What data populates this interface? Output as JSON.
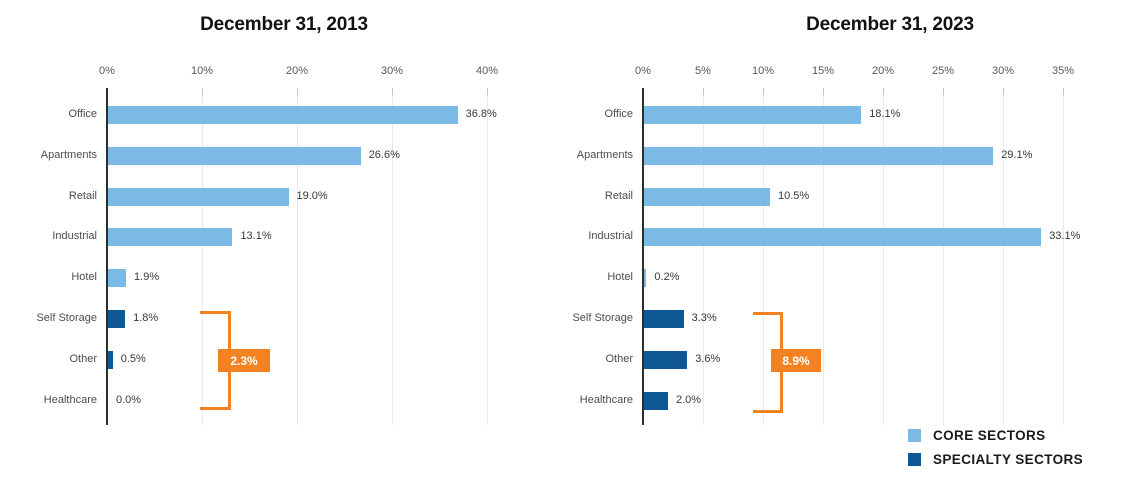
{
  "colors": {
    "core": "#7CBAE6",
    "specialty": "#0F5795",
    "bracket": "#F58220",
    "bracket_text": "#FFFFFF",
    "axis_line": "#2E2E2E",
    "gridline": "#EAEAEA",
    "tick_mark": "#C4C4C4",
    "tick_label": "#595959",
    "category_label": "#4D4D4D",
    "value_label": "#383838",
    "title": "#111111"
  },
  "legend": {
    "items": [
      {
        "label": "CORE SECTORS",
        "series": "core"
      },
      {
        "label": "SPECIALTY SECTORS",
        "series": "specialty"
      }
    ]
  },
  "chart_data": [
    {
      "type": "bar",
      "orientation": "horizontal",
      "title": "December 31, 2013",
      "categories": [
        "Office",
        "Apartments",
        "Retail",
        "Industrial",
        "Hotel",
        "Self Storage",
        "Other",
        "Healthcare"
      ],
      "values": [
        36.8,
        26.6,
        19.0,
        13.1,
        1.9,
        1.8,
        0.5,
        0.0
      ],
      "value_labels": [
        "36.8%",
        "26.6%",
        "19.0%",
        "13.1%",
        "1.9%",
        "1.8%",
        "0.5%",
        "0.0%"
      ],
      "series_by_category": [
        "core",
        "core",
        "core",
        "core",
        "core",
        "specialty",
        "specialty",
        "specialty"
      ],
      "x_tick_labels": [
        "0%",
        "10%",
        "20%",
        "30%",
        "40%"
      ],
      "x_tick_values": [
        0,
        10,
        20,
        30,
        40
      ],
      "xlim": [
        0,
        40
      ],
      "grid": true,
      "legend_position": "none",
      "bracket": {
        "label": "2.3%",
        "categories": [
          "Self Storage",
          "Other",
          "Healthcare"
        ]
      }
    },
    {
      "type": "bar",
      "orientation": "horizontal",
      "title": "December 31, 2023",
      "categories": [
        "Office",
        "Apartments",
        "Retail",
        "Industrial",
        "Hotel",
        "Self Storage",
        "Other",
        "Healthcare"
      ],
      "values": [
        18.1,
        29.1,
        10.5,
        33.1,
        0.2,
        3.3,
        3.6,
        2.0
      ],
      "value_labels": [
        "18.1%",
        "29.1%",
        "10.5%",
        "33.1%",
        "0.2%",
        "3.3%",
        "3.6%",
        "2.0%"
      ],
      "series_by_category": [
        "core",
        "core",
        "core",
        "core",
        "core",
        "specialty",
        "specialty",
        "specialty"
      ],
      "x_tick_labels": [
        "0%",
        "5%",
        "10%",
        "15%",
        "20%",
        "25%",
        "30%",
        "35%"
      ],
      "x_tick_values": [
        0,
        5,
        10,
        15,
        20,
        25,
        30,
        35
      ],
      "xlim": [
        0,
        35
      ],
      "grid": true,
      "legend_position": "bottom-right",
      "bracket": {
        "label": "8.9%",
        "categories": [
          "Self Storage",
          "Other",
          "Healthcare"
        ]
      }
    }
  ]
}
